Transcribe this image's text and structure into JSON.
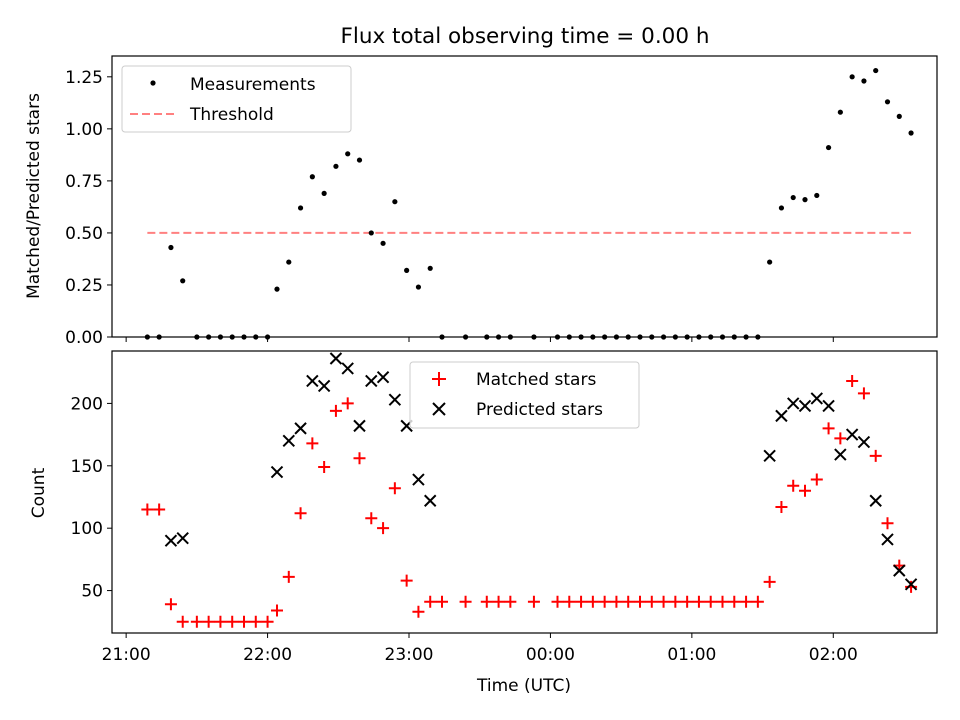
{
  "figure": {
    "title": "Flux total observing time = 0.00 h"
  },
  "chart_data": [
    {
      "type": "scatter",
      "ylabel": "Matched/Predicted stars",
      "xlim": [
        "20:54",
        "02:44"
      ],
      "ylim": [
        0,
        1.35
      ],
      "yticks": [
        "0.00",
        "0.25",
        "0.50",
        "0.75",
        "1.00",
        "1.25"
      ],
      "legend_position": "upper-left",
      "legend": [
        "Measurements",
        "Threshold"
      ],
      "series": [
        {
          "name": "Measurements",
          "marker": "dot",
          "color": "#000000",
          "points": [
            [
              "21:09",
              0
            ],
            [
              "21:14",
              0
            ],
            [
              "21:19",
              0.43
            ],
            [
              "21:24",
              0.27
            ],
            [
              "21:30",
              0
            ],
            [
              "21:35",
              0
            ],
            [
              "21:40",
              0
            ],
            [
              "21:45",
              0
            ],
            [
              "21:50",
              0
            ],
            [
              "21:55",
              0
            ],
            [
              "22:00",
              0
            ],
            [
              "22:04",
              0.23
            ],
            [
              "22:09",
              0.36
            ],
            [
              "22:14",
              0.62
            ],
            [
              "22:19",
              0.77
            ],
            [
              "22:24",
              0.69
            ],
            [
              "22:29",
              0.82
            ],
            [
              "22:34",
              0.88
            ],
            [
              "22:39",
              0.85
            ],
            [
              "22:44",
              0.5
            ],
            [
              "22:49",
              0.45
            ],
            [
              "22:54",
              0.65
            ],
            [
              "22:59",
              0.32
            ],
            [
              "23:04",
              0.24
            ],
            [
              "23:09",
              0.33
            ],
            [
              "23:14",
              0
            ],
            [
              "23:24",
              0
            ],
            [
              "23:33",
              0
            ],
            [
              "23:38",
              0
            ],
            [
              "23:43",
              0
            ],
            [
              "23:53",
              0
            ],
            [
              "00:03",
              0
            ],
            [
              "00:08",
              0
            ],
            [
              "00:13",
              0
            ],
            [
              "00:18",
              0
            ],
            [
              "00:23",
              0
            ],
            [
              "00:28",
              0
            ],
            [
              "00:33",
              0
            ],
            [
              "00:38",
              0
            ],
            [
              "00:43",
              0
            ],
            [
              "00:48",
              0
            ],
            [
              "00:53",
              0
            ],
            [
              "00:58",
              0
            ],
            [
              "01:03",
              0
            ],
            [
              "01:08",
              0
            ],
            [
              "01:13",
              0
            ],
            [
              "01:18",
              0
            ],
            [
              "01:23",
              0
            ],
            [
              "01:28",
              0
            ],
            [
              "01:33",
              0.36
            ],
            [
              "01:38",
              0.62
            ],
            [
              "01:43",
              0.67
            ],
            [
              "01:48",
              0.66
            ],
            [
              "01:53",
              0.68
            ],
            [
              "01:58",
              0.91
            ],
            [
              "02:03",
              1.08
            ],
            [
              "02:08",
              1.25
            ],
            [
              "02:13",
              1.23
            ],
            [
              "02:18",
              1.28
            ],
            [
              "02:23",
              1.13
            ],
            [
              "02:28",
              1.06
            ],
            [
              "02:33",
              0.98
            ]
          ]
        },
        {
          "name": "Threshold",
          "style": "dashed",
          "color": "#ff8080",
          "x_range": [
            "21:09",
            "02:33"
          ],
          "y": 0.5
        }
      ]
    },
    {
      "type": "scatter",
      "xlabel": "Time (UTC)",
      "ylabel": "Count",
      "xlim": [
        "20:54",
        "02:44"
      ],
      "ylim": [
        16,
        242
      ],
      "xticks": [
        "21:00",
        "22:00",
        "23:00",
        "00:00",
        "01:00",
        "02:00"
      ],
      "yticks": [
        "50",
        "100",
        "150",
        "200"
      ],
      "legend_position": "upper-center",
      "legend": [
        "Matched stars",
        "Predicted stars"
      ],
      "series": [
        {
          "name": "Matched stars",
          "marker": "plus",
          "color": "#ff0000",
          "points": [
            [
              "21:09",
              115
            ],
            [
              "21:14",
              115
            ],
            [
              "21:19",
              39
            ],
            [
              "21:24",
              25
            ],
            [
              "21:30",
              25
            ],
            [
              "21:35",
              25
            ],
            [
              "21:40",
              25
            ],
            [
              "21:45",
              25
            ],
            [
              "21:50",
              25
            ],
            [
              "21:55",
              25
            ],
            [
              "22:00",
              25
            ],
            [
              "22:04",
              34
            ],
            [
              "22:09",
              61
            ],
            [
              "22:14",
              112
            ],
            [
              "22:19",
              168
            ],
            [
              "22:24",
              149
            ],
            [
              "22:29",
              194
            ],
            [
              "22:34",
              200
            ],
            [
              "22:39",
              156
            ],
            [
              "22:44",
              108
            ],
            [
              "22:49",
              100
            ],
            [
              "22:54",
              132
            ],
            [
              "22:59",
              58
            ],
            [
              "23:04",
              33
            ],
            [
              "23:09",
              41
            ],
            [
              "23:14",
              41
            ],
            [
              "23:24",
              41
            ],
            [
              "23:33",
              41
            ],
            [
              "23:38",
              41
            ],
            [
              "23:43",
              41
            ],
            [
              "23:53",
              41
            ],
            [
              "00:03",
              41
            ],
            [
              "00:08",
              41
            ],
            [
              "00:13",
              41
            ],
            [
              "00:18",
              41
            ],
            [
              "00:23",
              41
            ],
            [
              "00:28",
              41
            ],
            [
              "00:33",
              41
            ],
            [
              "00:38",
              41
            ],
            [
              "00:43",
              41
            ],
            [
              "00:48",
              41
            ],
            [
              "00:53",
              41
            ],
            [
              "00:58",
              41
            ],
            [
              "01:03",
              41
            ],
            [
              "01:08",
              41
            ],
            [
              "01:13",
              41
            ],
            [
              "01:18",
              41
            ],
            [
              "01:23",
              41
            ],
            [
              "01:28",
              41
            ],
            [
              "01:33",
              57
            ],
            [
              "01:38",
              117
            ],
            [
              "01:43",
              134
            ],
            [
              "01:48",
              130
            ],
            [
              "01:53",
              139
            ],
            [
              "01:58",
              180
            ],
            [
              "02:03",
              172
            ],
            [
              "02:08",
              218
            ],
            [
              "02:13",
              208
            ],
            [
              "02:18",
              158
            ],
            [
              "02:23",
              104
            ],
            [
              "02:28",
              70
            ],
            [
              "02:33",
              53
            ]
          ]
        },
        {
          "name": "Predicted stars",
          "marker": "x",
          "color": "#000000",
          "points": [
            [
              "21:19",
              90
            ],
            [
              "21:24",
              92
            ],
            [
              "22:04",
              145
            ],
            [
              "22:09",
              170
            ],
            [
              "22:14",
              180
            ],
            [
              "22:19",
              218
            ],
            [
              "22:24",
              214
            ],
            [
              "22:29",
              236
            ],
            [
              "22:34",
              228
            ],
            [
              "22:39",
              182
            ],
            [
              "22:44",
              218
            ],
            [
              "22:49",
              221
            ],
            [
              "22:54",
              203
            ],
            [
              "22:59",
              182
            ],
            [
              "23:04",
              139
            ],
            [
              "23:09",
              122
            ],
            [
              "01:33",
              158
            ],
            [
              "01:38",
              190
            ],
            [
              "01:43",
              200
            ],
            [
              "01:48",
              198
            ],
            [
              "01:53",
              204
            ],
            [
              "01:58",
              198
            ],
            [
              "02:03",
              159
            ],
            [
              "02:08",
              175
            ],
            [
              "02:13",
              169
            ],
            [
              "02:18",
              122
            ],
            [
              "02:23",
              91
            ],
            [
              "02:28",
              66
            ],
            [
              "02:33",
              55
            ]
          ]
        }
      ]
    }
  ]
}
